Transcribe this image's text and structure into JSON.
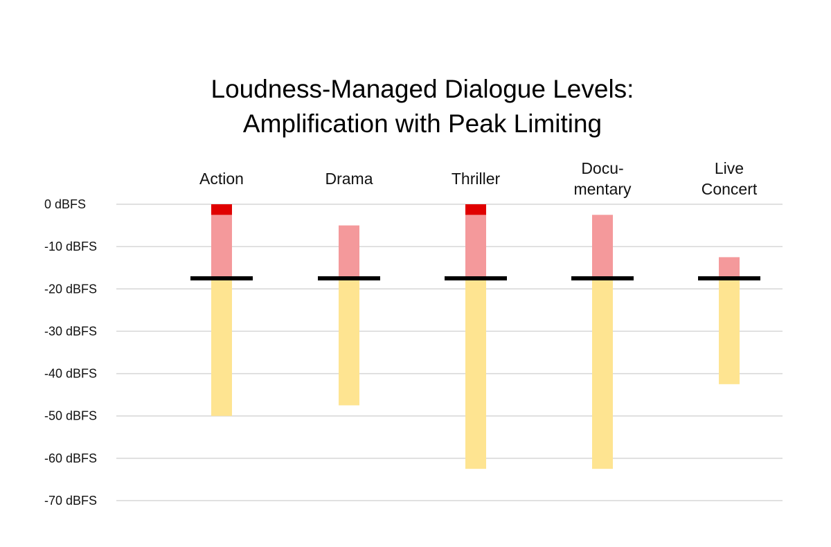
{
  "chart_data": {
    "type": "bar",
    "title": "Loudness-Managed Dialogue Levels: Amplification with Peak Limiting",
    "title_lines": [
      "Loudness-Managed Dialogue Levels:",
      "Amplification with Peak Limiting"
    ],
    "xlabel": "",
    "ylabel": "",
    "y_ticks": [
      0,
      -10,
      -20,
      -30,
      -40,
      -50,
      -60,
      -70
    ],
    "y_tick_labels": [
      "0 dBFS",
      "-10 dBFS",
      "-20 dBFS",
      "-30 dBFS",
      "-40 dBFS",
      "-50 dBFS",
      "-60 dBFS",
      "-70 dBFS"
    ],
    "ylim": [
      -70,
      0
    ],
    "grid": true,
    "dialogue_level": -17.5,
    "categories": [
      {
        "name": "Action",
        "label_lines": [
          "Action"
        ],
        "low": -50,
        "high": 0,
        "limited_above": -2.5
      },
      {
        "name": "Drama",
        "label_lines": [
          "Drama"
        ],
        "low": -47.5,
        "high": -5,
        "limited_above": null
      },
      {
        "name": "Thriller",
        "label_lines": [
          "Thriller"
        ],
        "low": -62.5,
        "high": 0,
        "limited_above": -2.5
      },
      {
        "name": "Docu-mentary",
        "label_lines": [
          "Docu-",
          "mentary"
        ],
        "low": -62.5,
        "high": -2.5,
        "limited_above": null
      },
      {
        "name": "Live Concert",
        "label_lines": [
          "Live",
          "Concert"
        ],
        "low": -42.5,
        "high": -12.5,
        "limited_above": null
      }
    ],
    "colors": {
      "below_dialogue": "#fee491",
      "above_dialogue": "#f4999b",
      "limited": "#e00000",
      "dialogue_line": "#000000",
      "grid": "#d6d6d6"
    }
  }
}
